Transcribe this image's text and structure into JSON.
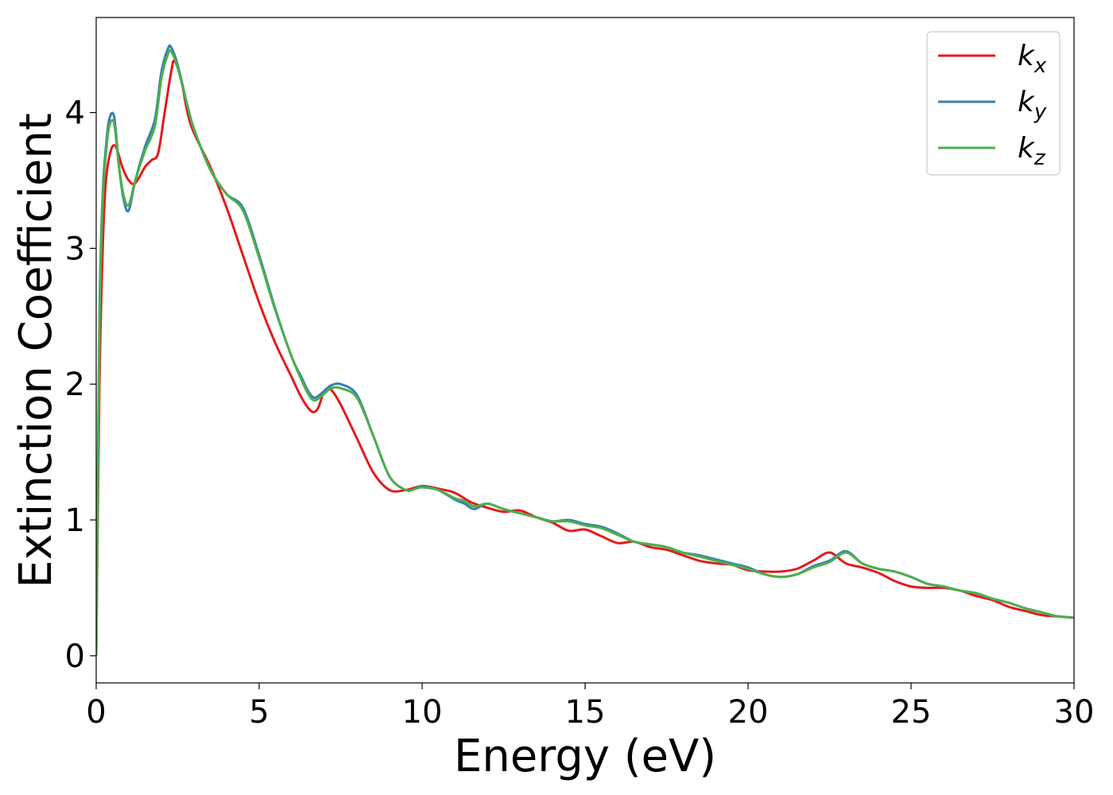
{
  "chart_data": {
    "type": "line",
    "title": "",
    "xlabel": "Energy (eV)",
    "ylabel": "Extinction Coefficient",
    "xlim": [
      0,
      30
    ],
    "ylim": [
      -0.2,
      4.7
    ],
    "xticks": [
      0,
      5,
      10,
      15,
      20,
      25,
      30
    ],
    "xtick_labels": [
      "0",
      "5",
      "10",
      "15",
      "20",
      "25",
      "30"
    ],
    "yticks": [
      0,
      1,
      2,
      3,
      4
    ],
    "ytick_labels": [
      "0",
      "1",
      "2",
      "3",
      "4"
    ],
    "grid": false,
    "legend_position": "top-right",
    "series": [
      {
        "name": "k_x",
        "label_base": "k",
        "label_sub": "x",
        "color": "#e41a1c",
        "x": [
          0,
          0.1,
          0.2,
          0.3,
          0.45,
          0.6,
          0.8,
          1.0,
          1.2,
          1.5,
          1.7,
          1.9,
          2.1,
          2.3,
          2.4,
          2.6,
          2.8,
          3.0,
          3.5,
          4.0,
          4.5,
          5.0,
          5.5,
          6.0,
          6.3,
          6.6,
          6.8,
          7.0,
          7.2,
          7.5,
          8.0,
          8.5,
          9.0,
          9.5,
          10.0,
          10.5,
          11.0,
          11.5,
          12.0,
          12.5,
          13.0,
          13.5,
          14.0,
          14.5,
          15.0,
          15.5,
          16.0,
          16.5,
          17.0,
          17.5,
          18.0,
          18.5,
          19.0,
          19.5,
          20.0,
          20.5,
          21.0,
          21.5,
          22.0,
          22.5,
          23.0,
          23.5,
          24.0,
          24.5,
          25.0,
          25.5,
          26.0,
          26.5,
          27.0,
          27.5,
          28.0,
          28.5,
          29.0,
          29.5,
          30.0
        ],
        "y": [
          0.0,
          2.0,
          3.0,
          3.5,
          3.72,
          3.75,
          3.6,
          3.5,
          3.48,
          3.6,
          3.65,
          3.7,
          4.0,
          4.3,
          4.38,
          4.25,
          4.0,
          3.85,
          3.6,
          3.3,
          2.95,
          2.6,
          2.3,
          2.05,
          1.9,
          1.8,
          1.82,
          1.95,
          1.96,
          1.85,
          1.6,
          1.35,
          1.22,
          1.22,
          1.25,
          1.23,
          1.2,
          1.13,
          1.09,
          1.06,
          1.07,
          1.02,
          0.98,
          0.92,
          0.93,
          0.88,
          0.83,
          0.84,
          0.8,
          0.78,
          0.74,
          0.7,
          0.68,
          0.67,
          0.63,
          0.62,
          0.62,
          0.64,
          0.7,
          0.76,
          0.68,
          0.65,
          0.61,
          0.55,
          0.51,
          0.5,
          0.5,
          0.48,
          0.44,
          0.41,
          0.36,
          0.33,
          0.3,
          0.29,
          0.28
        ]
      },
      {
        "name": "k_y",
        "label_base": "k",
        "label_sub": "y",
        "color": "#377eb8",
        "x": [
          0,
          0.1,
          0.2,
          0.3,
          0.4,
          0.55,
          0.7,
          0.85,
          1.0,
          1.2,
          1.5,
          1.8,
          2.0,
          2.2,
          2.3,
          2.5,
          2.8,
          3.0,
          3.5,
          4.0,
          4.5,
          5.0,
          5.5,
          6.0,
          6.3,
          6.5,
          6.7,
          7.0,
          7.2,
          7.5,
          8.0,
          8.5,
          9.0,
          9.5,
          9.8,
          10.0,
          10.5,
          11.0,
          11.3,
          11.6,
          12.0,
          12.5,
          13.0,
          13.5,
          14.0,
          14.5,
          15.0,
          15.5,
          16.0,
          16.5,
          17.0,
          17.5,
          18.0,
          18.5,
          19.0,
          19.5,
          20.0,
          20.5,
          21.0,
          21.5,
          22.0,
          22.5,
          23.0,
          23.5,
          24.0,
          24.5,
          25.0,
          25.5,
          26.0,
          26.5,
          27.0,
          27.5,
          28.0,
          28.5,
          29.0,
          29.5,
          30.0
        ],
        "y": [
          0.0,
          2.5,
          3.4,
          3.75,
          3.95,
          3.97,
          3.6,
          3.35,
          3.28,
          3.5,
          3.75,
          3.95,
          4.3,
          4.47,
          4.48,
          4.35,
          4.05,
          3.88,
          3.58,
          3.4,
          3.3,
          2.95,
          2.55,
          2.2,
          2.05,
          1.95,
          1.9,
          1.95,
          1.99,
          2.0,
          1.92,
          1.62,
          1.32,
          1.22,
          1.23,
          1.25,
          1.22,
          1.15,
          1.12,
          1.08,
          1.12,
          1.08,
          1.05,
          1.02,
          0.99,
          1.0,
          0.97,
          0.95,
          0.9,
          0.84,
          0.82,
          0.8,
          0.76,
          0.74,
          0.71,
          0.68,
          0.65,
          0.6,
          0.58,
          0.6,
          0.66,
          0.7,
          0.77,
          0.68,
          0.64,
          0.62,
          0.58,
          0.53,
          0.51,
          0.48,
          0.46,
          0.42,
          0.39,
          0.35,
          0.32,
          0.29,
          0.28
        ]
      },
      {
        "name": "k_z",
        "label_base": "k",
        "label_sub": "z",
        "color": "#4daf4a",
        "x": [
          0,
          0.1,
          0.2,
          0.3,
          0.4,
          0.55,
          0.7,
          0.85,
          1.0,
          1.2,
          1.5,
          1.8,
          2.0,
          2.2,
          2.3,
          2.5,
          2.8,
          3.0,
          3.5,
          4.0,
          4.5,
          5.0,
          5.5,
          6.0,
          6.3,
          6.5,
          6.7,
          7.0,
          7.2,
          7.5,
          8.0,
          8.5,
          9.0,
          9.5,
          9.8,
          10.0,
          10.5,
          11.0,
          11.3,
          11.6,
          12.0,
          12.5,
          13.0,
          13.5,
          14.0,
          14.5,
          15.0,
          15.5,
          16.0,
          16.5,
          17.0,
          17.5,
          18.0,
          18.5,
          19.0,
          19.5,
          20.0,
          20.5,
          21.0,
          21.5,
          22.0,
          22.5,
          23.0,
          23.5,
          24.0,
          24.5,
          25.0,
          25.5,
          26.0,
          26.5,
          27.0,
          27.5,
          28.0,
          28.5,
          29.0,
          29.5,
          30.0
        ],
        "y": [
          0.0,
          2.4,
          3.35,
          3.7,
          3.9,
          3.92,
          3.6,
          3.38,
          3.32,
          3.5,
          3.72,
          3.9,
          4.25,
          4.43,
          4.45,
          4.33,
          4.05,
          3.88,
          3.58,
          3.4,
          3.28,
          2.93,
          2.54,
          2.2,
          2.03,
          1.93,
          1.88,
          1.93,
          1.97,
          1.97,
          1.9,
          1.62,
          1.32,
          1.22,
          1.23,
          1.24,
          1.22,
          1.16,
          1.14,
          1.1,
          1.12,
          1.08,
          1.05,
          1.02,
          0.99,
          0.99,
          0.96,
          0.94,
          0.89,
          0.84,
          0.82,
          0.8,
          0.76,
          0.73,
          0.7,
          0.67,
          0.64,
          0.6,
          0.58,
          0.6,
          0.65,
          0.69,
          0.76,
          0.68,
          0.64,
          0.62,
          0.58,
          0.53,
          0.51,
          0.48,
          0.46,
          0.42,
          0.39,
          0.35,
          0.32,
          0.29,
          0.28
        ]
      }
    ]
  }
}
